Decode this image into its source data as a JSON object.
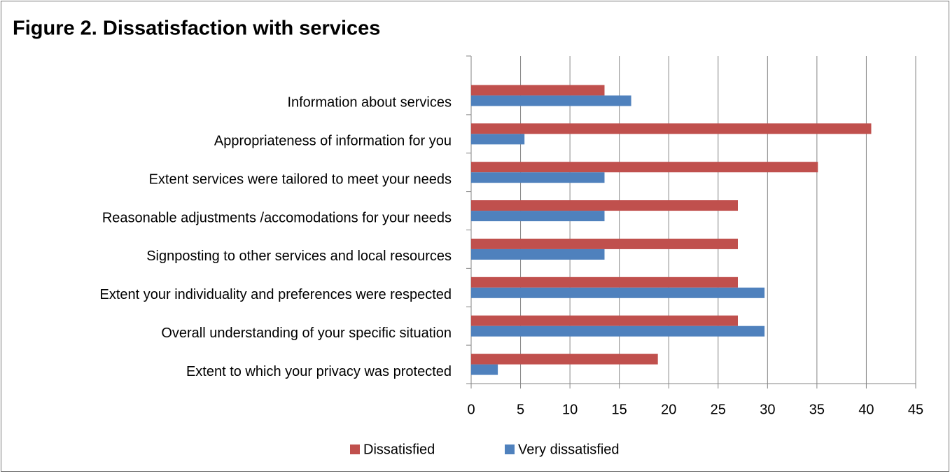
{
  "chart_data": {
    "type": "hbar",
    "title": "Figure 2. Dissatisfaction with services",
    "categories": [
      "Information about services",
      "Appropriateness of information for you",
      "Extent services were tailored to meet your needs",
      "Reasonable adjustments /accomodations for your needs",
      "Signposting to other services and local resources",
      "Extent your individuality and preferences were respected",
      "Overall understanding of your specific situation",
      "Extent to which your privacy was protected"
    ],
    "series": [
      {
        "name": "Dissatisfied",
        "color": "#c0504d",
        "values": [
          13.5,
          40.5,
          35.1,
          27.0,
          27.0,
          27.0,
          27.0,
          18.9
        ]
      },
      {
        "name": "Very dissatisfied",
        "color": "#4f81bd",
        "values": [
          16.2,
          5.4,
          13.5,
          13.5,
          13.5,
          29.7,
          29.7,
          2.7
        ]
      }
    ],
    "xlim": [
      0,
      45
    ],
    "xticks": [
      0,
      5,
      10,
      15,
      20,
      25,
      30,
      35,
      40,
      45
    ],
    "grid": true,
    "legend": "bottom"
  }
}
